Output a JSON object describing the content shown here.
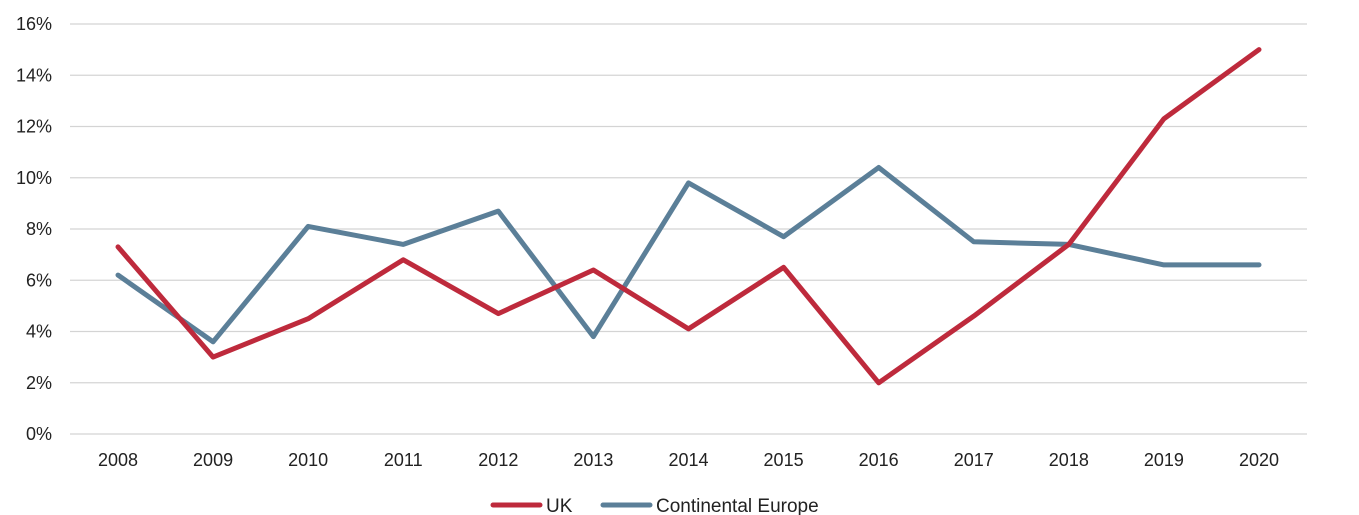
{
  "chart_data": {
    "type": "line",
    "title": "",
    "xlabel": "",
    "ylabel": "",
    "categories": [
      "2008",
      "2009",
      "2010",
      "2011",
      "2012",
      "2013",
      "2014",
      "2015",
      "2016",
      "2017",
      "2018",
      "2019",
      "2020"
    ],
    "series": [
      {
        "name": "UK",
        "color": "#be2a3c",
        "values": [
          7.3,
          3.0,
          4.5,
          6.8,
          4.7,
          6.4,
          4.1,
          6.5,
          2.0,
          4.6,
          7.4,
          12.3,
          15.0
        ]
      },
      {
        "name": "Continental Europe",
        "color": "#5b7f98",
        "values": [
          6.2,
          3.6,
          8.1,
          7.4,
          8.7,
          3.8,
          9.8,
          7.7,
          10.4,
          7.5,
          7.4,
          6.6,
          6.6
        ]
      }
    ],
    "yticks": [
      "0%",
      "2%",
      "4%",
      "6%",
      "8%",
      "10%",
      "12%",
      "14%",
      "16%"
    ],
    "ylim": [
      0,
      16
    ],
    "grid": true,
    "legend_position": "bottom"
  }
}
